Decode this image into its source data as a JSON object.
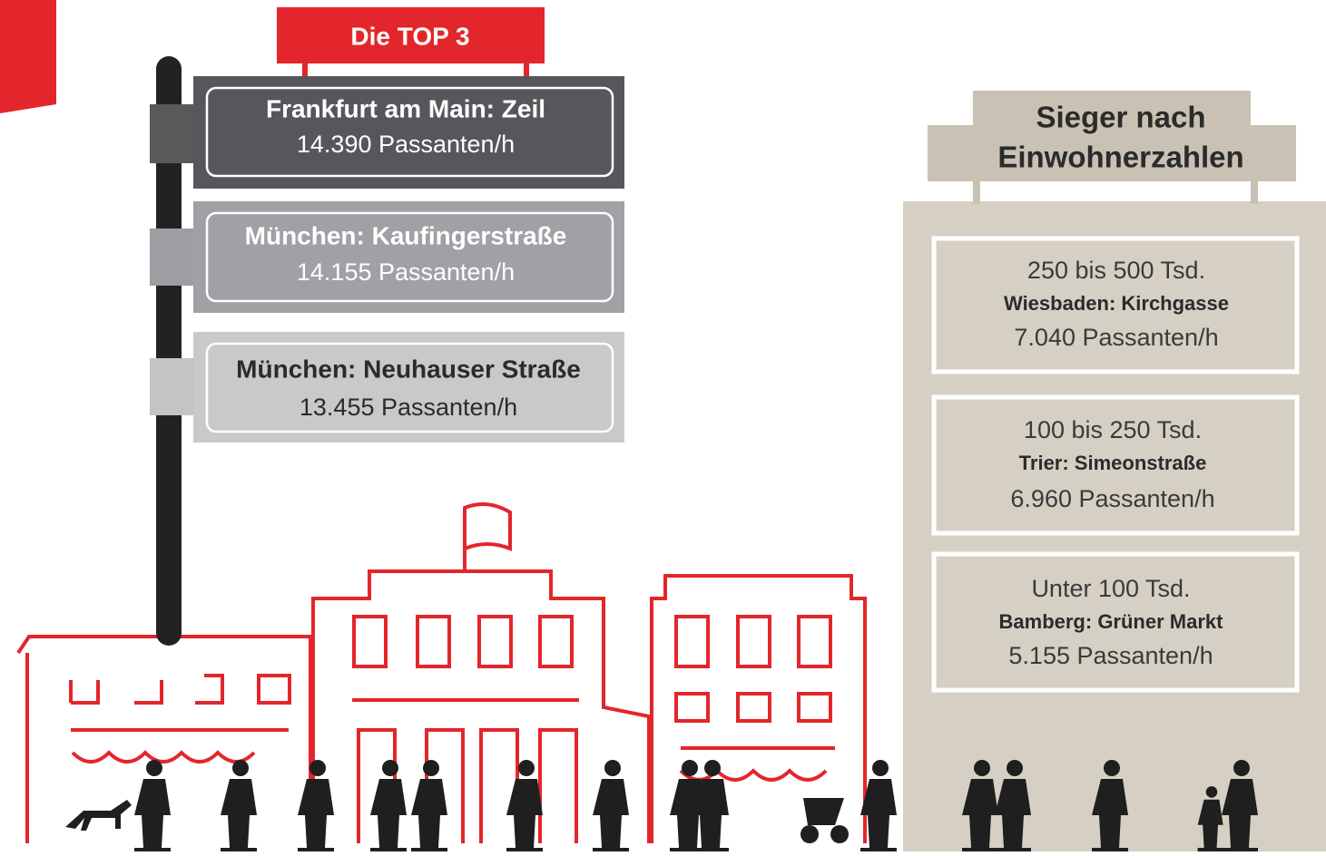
{
  "top3": {
    "title": "Die TOP 3",
    "items": [
      {
        "street": "Frankfurt am Main: Zeil",
        "count": "14.390 Passanten/h"
      },
      {
        "street": "München: Kaufingerstraße",
        "count": "14.155 Passanten/h"
      },
      {
        "street": "München: Neuhauser Straße",
        "count": "13.455 Passanten/h"
      }
    ]
  },
  "winners": {
    "title": [
      "Sieger nach",
      "Einwohnerzahlen"
    ],
    "items": [
      {
        "category": "250 bis 500 Tsd.",
        "street": "Wiesbaden: Kirchgasse",
        "count": "7.040 Passanten/h"
      },
      {
        "category": "100 bis 250 Tsd.",
        "street": "Trier: Simeonstraße",
        "count": "6.960 Passanten/h"
      },
      {
        "category": "Unter 100 Tsd.",
        "street": "Bamberg: Grüner Markt",
        "count": "5.155 Passanten/h"
      }
    ]
  }
}
